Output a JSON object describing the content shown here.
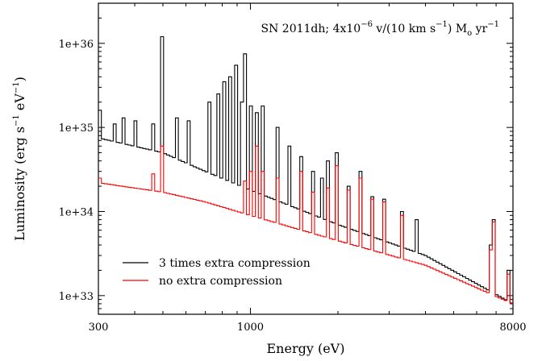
{
  "chart_data": {
    "type": "line",
    "annotation": {
      "main": "SN 2011dh; 4x10",
      "exp1": "−6",
      "mid": " v/(10 km s",
      "exp2": "−1",
      "end": ") M",
      "sub": "o",
      "tail": " yr",
      "exp3": "−1"
    },
    "xlabel": "Energy (eV)",
    "ylabel": {
      "main": "Luminosity (erg s",
      "exp1": "−1",
      "mid": " eV",
      "exp2": "−1",
      "end": ")"
    },
    "x_scale": "log",
    "y_scale": "log",
    "xlim": [
      300,
      8000
    ],
    "ylim": [
      6e+32,
      3e+36
    ],
    "x_ticks": [
      {
        "value": 300,
        "label": "300"
      },
      {
        "value": 1000,
        "label": "1000"
      },
      {
        "value": 8000,
        "label": "8000"
      }
    ],
    "y_ticks": [
      {
        "value": 1e+33,
        "label": "1e+33"
      },
      {
        "value": 1e+34,
        "label": "1e+34"
      },
      {
        "value": 1e+35,
        "label": "1e+35"
      },
      {
        "value": 1e+36,
        "label": "1e+36"
      }
    ],
    "legend_position": "bottom-left",
    "series": [
      {
        "name": "3 times extra compression",
        "color": "#000000",
        "continuum": [
          [
            300,
            7.5e+34
          ],
          [
            500,
            5e+34
          ],
          [
            700,
            3e+34
          ],
          [
            1000,
            1.8e+34
          ],
          [
            2000,
            7e+33
          ],
          [
            4000,
            3e+33
          ],
          [
            8000,
            8e+32
          ]
        ],
        "lines": [
          [
            302,
            1.6e+35
          ],
          [
            340,
            1.1e+35
          ],
          [
            370,
            1.3e+35
          ],
          [
            400,
            1.2e+35
          ],
          [
            460,
            1.1e+35
          ],
          [
            500,
            1.2e+36
          ],
          [
            560,
            1.3e+35
          ],
          [
            620,
            1.2e+35
          ],
          [
            720,
            2e+35
          ],
          [
            780,
            2.5e+35
          ],
          [
            820,
            3.5e+35
          ],
          [
            850,
            4e+35
          ],
          [
            890,
            5.5e+35
          ],
          [
            930,
            2e+35
          ],
          [
            960,
            7.5e+35
          ],
          [
            1000,
            1.8e+35
          ],
          [
            1050,
            1.5e+35
          ],
          [
            1100,
            1.8e+35
          ],
          [
            1250,
            1e+35
          ],
          [
            1350,
            6e+34
          ],
          [
            1500,
            4.5e+34
          ],
          [
            1650,
            3e+34
          ],
          [
            1750,
            2.5e+34
          ],
          [
            1850,
            4e+34
          ],
          [
            2000,
            5e+34
          ],
          [
            2200,
            2e+34
          ],
          [
            2400,
            3e+34
          ],
          [
            2600,
            1.5e+34
          ],
          [
            2900,
            1.4e+34
          ],
          [
            3300,
            1e+34
          ],
          [
            3700,
            8e+33
          ],
          [
            6700,
            4e+33
          ],
          [
            6800,
            8e+33
          ],
          [
            7800,
            2e+33
          ]
        ]
      },
      {
        "name": "no extra compression",
        "color": "#ff0000",
        "continuum": [
          [
            300,
            2.2e+34
          ],
          [
            500,
            1.7e+34
          ],
          [
            700,
            1.3e+34
          ],
          [
            1000,
            9e+33
          ],
          [
            2000,
            4.5e+33
          ],
          [
            4000,
            2.3e+33
          ],
          [
            8000,
            8e+32
          ]
        ],
        "lines": [
          [
            302,
            2.5e+34
          ],
          [
            460,
            2.8e+34
          ],
          [
            500,
            6e+34
          ],
          [
            960,
            2.3e+34
          ],
          [
            1000,
            3e+34
          ],
          [
            1050,
            6e+34
          ],
          [
            1100,
            3e+34
          ],
          [
            1250,
            2.5e+34
          ],
          [
            1500,
            3e+34
          ],
          [
            1650,
            1.7e+34
          ],
          [
            1850,
            1.9e+34
          ],
          [
            2000,
            3.5e+34
          ],
          [
            2200,
            1.8e+34
          ],
          [
            2400,
            2.5e+34
          ],
          [
            2600,
            1.4e+34
          ],
          [
            2900,
            1.3e+34
          ],
          [
            3300,
            9e+33
          ],
          [
            6700,
            3.5e+33
          ],
          [
            6800,
            7.5e+33
          ],
          [
            7800,
            1.8e+33
          ]
        ]
      }
    ]
  }
}
